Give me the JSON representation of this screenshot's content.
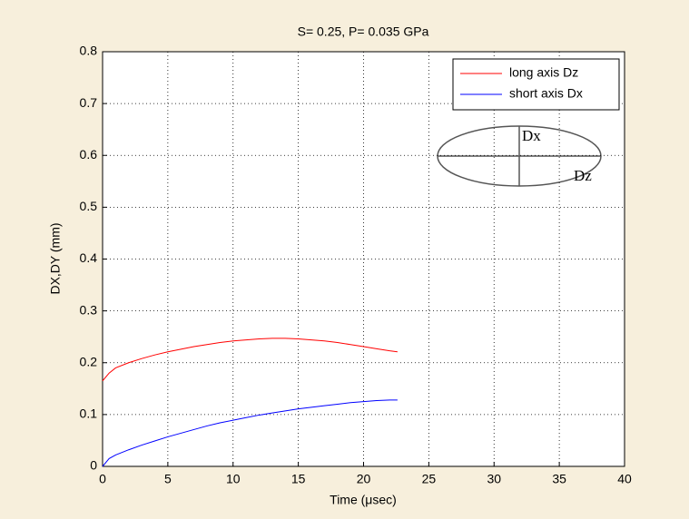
{
  "chart_data": {
    "type": "line",
    "title": "S= 0.25,  P= 0.035 GPa",
    "x_label": "Time (μsec)",
    "y_label": "DX,DY (mm)",
    "x": [
      0,
      0.5,
      1,
      2,
      3,
      4,
      5,
      6,
      7,
      8,
      9,
      10,
      11,
      12,
      13,
      14,
      15,
      16,
      17,
      18,
      19,
      20,
      21,
      22,
      22.6
    ],
    "series": [
      {
        "name": "long axis Dz",
        "color": "#ff0000",
        "values": [
          0.165,
          0.18,
          0.19,
          0.2,
          0.208,
          0.215,
          0.221,
          0.226,
          0.231,
          0.235,
          0.239,
          0.242,
          0.244,
          0.246,
          0.247,
          0.247,
          0.246,
          0.244,
          0.242,
          0.239,
          0.235,
          0.231,
          0.227,
          0.223,
          0.221
        ]
      },
      {
        "name": "short axis Dx",
        "color": "#0000ff",
        "values": [
          0,
          0.015,
          0.022,
          0.032,
          0.041,
          0.049,
          0.057,
          0.064,
          0.071,
          0.078,
          0.084,
          0.089,
          0.094,
          0.099,
          0.103,
          0.107,
          0.111,
          0.114,
          0.117,
          0.12,
          0.123,
          0.125,
          0.127,
          0.128,
          0.128
        ]
      }
    ],
    "xlim": [
      0,
      40
    ],
    "xticks": [
      0,
      5,
      10,
      15,
      20,
      25,
      30,
      35,
      40
    ],
    "ylim": [
      0,
      0.8
    ],
    "yticks": [
      0,
      0.1,
      0.2,
      0.3,
      0.4,
      0.5,
      0.6,
      0.7,
      0.8
    ],
    "grid": true,
    "legend": "northeast",
    "annotations": [
      "Dx",
      "Dz"
    ]
  }
}
